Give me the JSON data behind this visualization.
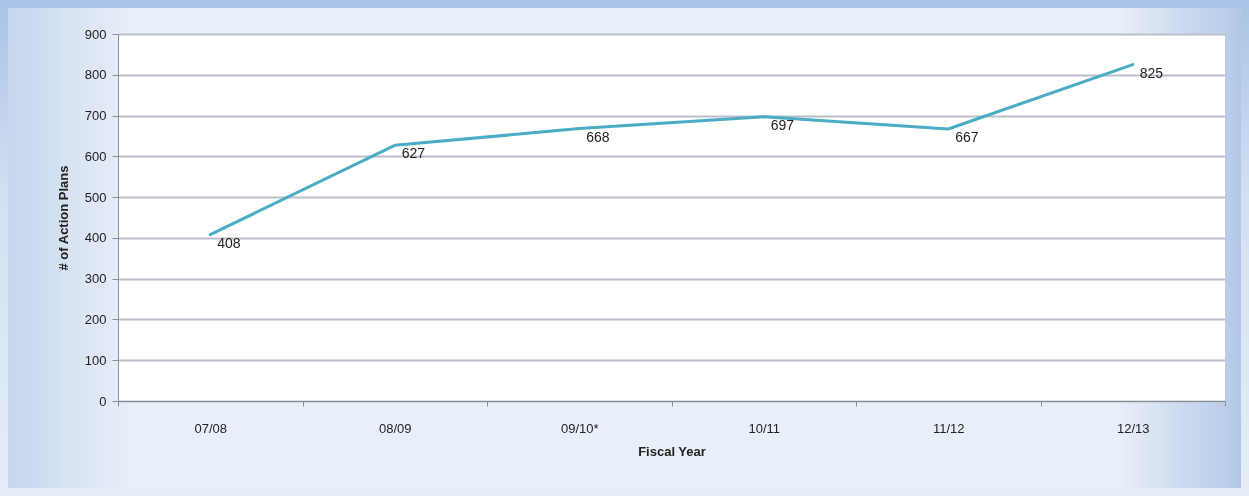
{
  "chart_data": {
    "type": "line",
    "xlabel": "Fiscal Year",
    "ylabel": "# of Action Plans",
    "categories": [
      "07/08",
      "08/09",
      "09/10*",
      "10/11",
      "11/12",
      "12/13"
    ],
    "series": [
      {
        "color": "#4bacc6",
        "values": [
          408,
          627,
          668,
          697,
          667,
          825
        ]
      }
    ],
    "ylim": [
      0,
      900
    ],
    "yticks": [
      0,
      100,
      200,
      300,
      400,
      500,
      600,
      700,
      800,
      900
    ],
    "grid": "y",
    "data_labels": true
  }
}
